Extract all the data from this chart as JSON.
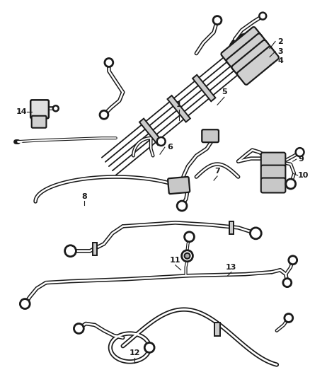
{
  "bg_color": "#ffffff",
  "line_color": "#1a1a1a",
  "fig_width": 4.38,
  "fig_height": 5.33,
  "dpi": 100,
  "lw_outer": 3.8,
  "lw_inner": 1.6,
  "lw_thin": 1.5
}
